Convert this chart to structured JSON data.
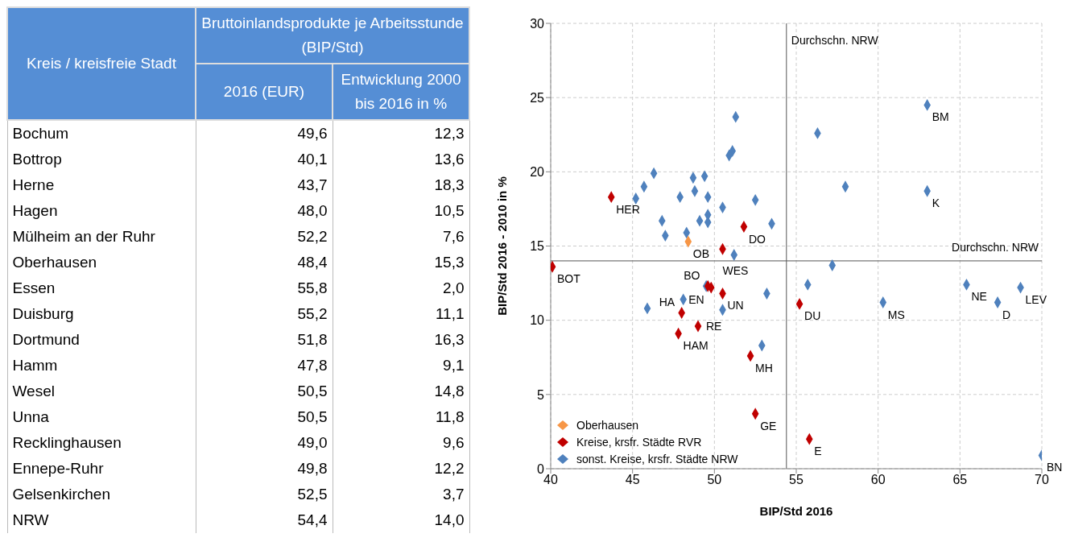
{
  "chart_data": [
    {
      "type": "other",
      "xlabel": "Kreis / kreisfreie Stadt",
      "legend_title": "Bruttoinlandsprodukte je Arbeitsstunde (BIP/Std)",
      "categories": [
        "Bochum",
        "Bottrop",
        "Herne",
        "Hagen",
        "Mülheim an der Ruhr",
        "Oberhausen",
        "Essen",
        "Duisburg",
        "Dortmund",
        "Hamm",
        "Wesel",
        "Unna",
        "Recklinghausen",
        "Ennepe-Ruhr",
        "Gelsenkirchen",
        "NRW"
      ],
      "series": [
        {
          "name": "2016 (EUR)",
          "values": [
            49.6,
            40.1,
            43.7,
            48.0,
            52.2,
            48.4,
            55.8,
            55.2,
            51.8,
            47.8,
            50.5,
            50.5,
            49.0,
            49.8,
            52.5,
            54.4
          ],
          "value_labels": [
            "49,6",
            "40,1",
            "43,7",
            "48,0",
            "52,2",
            "48,4",
            "55,8",
            "55,2",
            "51,8",
            "47,8",
            "50,5",
            "50,5",
            "49,0",
            "49,8",
            "52,5",
            "54,4"
          ]
        },
        {
          "name": "Entwicklung 2000 bis 2016 in %",
          "values": [
            12.3,
            13.6,
            18.3,
            10.5,
            7.6,
            15.3,
            2.0,
            11.1,
            16.3,
            9.1,
            14.8,
            11.8,
            9.6,
            12.2,
            3.7,
            14.0
          ],
          "value_labels": [
            "12,3",
            "13,6",
            "18,3",
            "10,5",
            "7,6",
            "15,3",
            "2,0",
            "11,1",
            "16,3",
            "9,1",
            "14,8",
            "11,8",
            "9,6",
            "12,2",
            "3,7",
            "14,0"
          ]
        }
      ]
    },
    {
      "type": "scatter",
      "xlabel": "BIP/Std 2016",
      "ylabel": "BIP/Std 2016 - 2010 in %",
      "xlim": [
        40,
        70
      ],
      "xticks": [
        40,
        45,
        50,
        55,
        60,
        65,
        70
      ],
      "ylim": [
        0,
        30
      ],
      "yticks": [
        0,
        5,
        10,
        15,
        20,
        25,
        30
      ],
      "grid": true,
      "legend": "bottom left",
      "marker": "diamond",
      "ref_lines": [
        {
          "axis": "x",
          "value": 54.4,
          "label": "Durchschn. NRW"
        },
        {
          "axis": "y",
          "value": 14.0,
          "label": "Durchschn. NRW"
        }
      ],
      "series": [
        {
          "name": "Oberhausen",
          "color": "#f79646",
          "x": [
            48.4
          ],
          "values": [
            15.3
          ]
        },
        {
          "name": "Kreise, krsfr. Städte RVR",
          "color": "#c00000",
          "x": [
            49.6,
            40.1,
            43.7,
            48.0,
            52.2,
            55.8,
            55.2,
            51.8,
            47.8,
            50.5,
            50.5,
            49.0,
            49.8,
            52.5
          ],
          "values": [
            12.3,
            13.6,
            18.3,
            10.5,
            7.6,
            2.0,
            11.1,
            16.3,
            9.1,
            14.8,
            11.8,
            9.6,
            12.2,
            3.7
          ]
        },
        {
          "name": "sonst. Kreise, krsfr. Städte NRW",
          "color": "#4f81bd",
          "x": [
            51.3,
            56.3,
            51.1,
            50.9,
            58.0,
            46.3,
            45.7,
            48.7,
            49.4,
            48.8,
            45.2,
            47.9,
            49.6,
            52.5,
            50.5,
            63.0,
            49.6,
            49.1,
            46.8,
            49.6,
            53.5,
            48.3,
            47.0,
            51.2,
            57.2,
            55.7,
            49.5,
            53.2,
            48.1,
            45.9,
            50.5,
            52.9,
            60.3,
            63.0,
            65.4,
            67.3,
            68.7,
            70.0
          ],
          "values": [
            23.7,
            22.6,
            21.4,
            21.1,
            19.0,
            19.9,
            19.0,
            19.6,
            19.7,
            18.7,
            18.2,
            18.3,
            18.3,
            18.1,
            17.6,
            18.7,
            17.1,
            16.7,
            16.7,
            16.6,
            16.5,
            15.9,
            15.7,
            14.4,
            13.7,
            12.4,
            12.3,
            11.8,
            11.4,
            10.8,
            10.7,
            8.3,
            11.2,
            24.5,
            12.4,
            11.2,
            12.2,
            0.9
          ]
        }
      ],
      "annotations": [
        {
          "text": "OB",
          "x": 48.4,
          "y": 15.3
        },
        {
          "text": "BOT",
          "x": 40.1,
          "y": 13.6
        },
        {
          "text": "HER",
          "x": 43.7,
          "y": 18.3
        },
        {
          "text": "HA",
          "x": 48.0,
          "y": 10.5
        },
        {
          "text": "MH",
          "x": 52.2,
          "y": 7.6
        },
        {
          "text": "E",
          "x": 55.8,
          "y": 2.0
        },
        {
          "text": "DU",
          "x": 55.2,
          "y": 11.1
        },
        {
          "text": "DO",
          "x": 51.8,
          "y": 16.3
        },
        {
          "text": "HAM",
          "x": 47.8,
          "y": 9.1
        },
        {
          "text": "WES",
          "x": 50.5,
          "y": 14.8
        },
        {
          "text": "UN",
          "x": 50.5,
          "y": 11.8
        },
        {
          "text": "RE",
          "x": 49.0,
          "y": 9.6
        },
        {
          "text": "EN",
          "x": 49.8,
          "y": 12.2
        },
        {
          "text": "GE",
          "x": 52.5,
          "y": 3.7
        },
        {
          "text": "BO",
          "x": 49.5,
          "y": 12.3
        },
        {
          "text": "BM",
          "x": 63.0,
          "y": 24.5
        },
        {
          "text": "K",
          "x": 63.0,
          "y": 18.7
        },
        {
          "text": "MS",
          "x": 60.3,
          "y": 11.2
        },
        {
          "text": "NE",
          "x": 65.4,
          "y": 12.4
        },
        {
          "text": "D",
          "x": 67.3,
          "y": 11.2
        },
        {
          "text": "LEV",
          "x": 68.7,
          "y": 12.2
        },
        {
          "text": "BN",
          "x": 70.0,
          "y": 0.9
        }
      ]
    }
  ]
}
